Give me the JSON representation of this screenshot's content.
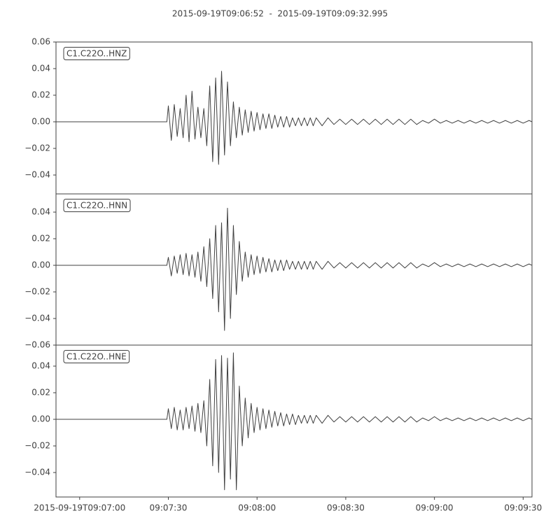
{
  "chart_data": [
    {
      "type": "line",
      "title": "2015-09-19T09:06:52  -  2015-09-19T09:09:32.995",
      "x": [
        412,
        449.5,
        450,
        451,
        452,
        453,
        454,
        455,
        456,
        457,
        458,
        459,
        460,
        461,
        462,
        463,
        464,
        465,
        466,
        467,
        468,
        469,
        470,
        471,
        472,
        473,
        474,
        475,
        476,
        477,
        478,
        479,
        480,
        481,
        482,
        483,
        484,
        485,
        486,
        487,
        488,
        489,
        490,
        491,
        492,
        493,
        494,
        495,
        496,
        497,
        498,
        499,
        500,
        502,
        504,
        506,
        508,
        510,
        512,
        514,
        516,
        518,
        520,
        522,
        524,
        526,
        528,
        530,
        532,
        534,
        536,
        538,
        540,
        542,
        544,
        546,
        548,
        550,
        552,
        554,
        556,
        558,
        560,
        562,
        564,
        566,
        568,
        570,
        572,
        573
      ],
      "series": [
        {
          "name": "C1.C22O..HNZ",
          "color": "#404040",
          "values": [
            0,
            0,
            0.012,
            -0.014,
            0.013,
            -0.011,
            0.01,
            -0.012,
            0.02,
            -0.015,
            0.023,
            -0.013,
            0.011,
            -0.012,
            0.01,
            -0.018,
            0.027,
            -0.03,
            0.033,
            -0.032,
            0.038,
            -0.025,
            0.03,
            -0.018,
            0.015,
            -0.012,
            0.011,
            -0.01,
            0.009,
            -0.008,
            0.008,
            -0.007,
            0.007,
            -0.006,
            0.006,
            -0.005,
            0.006,
            -0.005,
            0.005,
            -0.004,
            0.004,
            -0.004,
            0.004,
            -0.004,
            0.003,
            -0.003,
            0.003,
            -0.003,
            0.003,
            -0.003,
            0.003,
            -0.003,
            0.003,
            -0.003,
            0.003,
            -0.002,
            0.002,
            -0.002,
            0.002,
            -0.002,
            0.002,
            -0.002,
            0.002,
            -0.002,
            0.002,
            -0.002,
            0.002,
            -0.002,
            0.002,
            -0.002,
            0.001,
            -0.001,
            0.002,
            -0.001,
            0.001,
            -0.001,
            0.001,
            -0.001,
            0.001,
            -0.001,
            0.001,
            -0.001,
            0.001,
            -0.001,
            0.001,
            -0.001,
            0.001,
            -0.001,
            0.001,
            0
          ]
        }
      ],
      "xlim": [
        412,
        572.995
      ],
      "ylim": [
        -0.0542,
        0.06
      ],
      "yticks": [
        0.06,
        0.04,
        0.02,
        {
          "value": 0,
          "label": "0.00"
        },
        {
          "value": -0.02,
          "label": "−0.02"
        },
        {
          "value": -0.04,
          "label": "−0.04"
        }
      ]
    },
    {
      "type": "line",
      "x": [
        412,
        449.5,
        450,
        451,
        452,
        453,
        454,
        455,
        456,
        457,
        458,
        459,
        460,
        461,
        462,
        463,
        464,
        465,
        466,
        467,
        468,
        469,
        470,
        471,
        472,
        473,
        474,
        475,
        476,
        477,
        478,
        479,
        480,
        481,
        482,
        483,
        484,
        485,
        486,
        487,
        488,
        489,
        490,
        491,
        492,
        493,
        494,
        495,
        496,
        497,
        498,
        499,
        500,
        502,
        504,
        506,
        508,
        510,
        512,
        514,
        516,
        518,
        520,
        522,
        524,
        526,
        528,
        530,
        532,
        534,
        536,
        538,
        540,
        542,
        544,
        546,
        548,
        550,
        552,
        554,
        556,
        558,
        560,
        562,
        564,
        566,
        568,
        570,
        572,
        573
      ],
      "series": [
        {
          "name": "C1.C22O..HNN",
          "color": "#404040",
          "values": [
            0,
            0,
            0.006,
            -0.008,
            0.007,
            -0.006,
            0.008,
            -0.007,
            0.009,
            -0.008,
            0.008,
            -0.009,
            0.01,
            -0.012,
            0.014,
            -0.016,
            0.02,
            -0.025,
            0.03,
            -0.035,
            0.032,
            -0.049,
            0.043,
            -0.04,
            0.03,
            -0.022,
            0.018,
            -0.012,
            0.01,
            -0.009,
            0.008,
            -0.007,
            0.007,
            -0.006,
            0.006,
            -0.005,
            0.005,
            -0.005,
            0.004,
            -0.004,
            0.004,
            -0.004,
            0.004,
            -0.003,
            0.003,
            -0.003,
            0.003,
            -0.003,
            0.003,
            -0.003,
            0.003,
            -0.003,
            0.003,
            -0.003,
            0.003,
            -0.002,
            0.002,
            -0.002,
            0.002,
            -0.002,
            0.002,
            -0.002,
            0.002,
            -0.002,
            0.002,
            -0.002,
            0.002,
            -0.002,
            0.002,
            -0.002,
            0.001,
            -0.001,
            0.002,
            -0.001,
            0.001,
            -0.001,
            0.001,
            -0.001,
            0.001,
            -0.001,
            0.001,
            -0.001,
            0.001,
            -0.001,
            0.001,
            -0.001,
            0.001,
            -0.001,
            0.001,
            0
          ]
        }
      ],
      "xlim": [
        412,
        572.995
      ],
      "ylim": [
        -0.06,
        0.0537
      ],
      "yticks": [
        0.04,
        0.02,
        {
          "value": 0,
          "label": "0.00"
        },
        {
          "value": -0.02,
          "label": "−0.02"
        },
        {
          "value": -0.04,
          "label": "−0.04"
        },
        {
          "value": -0.06,
          "label": "−0.06"
        }
      ]
    },
    {
      "type": "line",
      "x": [
        412,
        449.5,
        450,
        451,
        452,
        453,
        454,
        455,
        456,
        457,
        458,
        459,
        460,
        461,
        462,
        463,
        464,
        465,
        466,
        467,
        468,
        469,
        470,
        471,
        472,
        473,
        474,
        475,
        476,
        477,
        478,
        479,
        480,
        481,
        482,
        483,
        484,
        485,
        486,
        487,
        488,
        489,
        490,
        491,
        492,
        493,
        494,
        495,
        496,
        497,
        498,
        499,
        500,
        502,
        504,
        506,
        508,
        510,
        512,
        514,
        516,
        518,
        520,
        522,
        524,
        526,
        528,
        530,
        532,
        534,
        536,
        538,
        540,
        542,
        544,
        546,
        548,
        550,
        552,
        554,
        556,
        558,
        560,
        562,
        564,
        566,
        568,
        570,
        572,
        573
      ],
      "series": [
        {
          "name": "C1.C22O..HNE",
          "color": "#404040",
          "values": [
            0,
            0,
            0.008,
            -0.007,
            0.009,
            -0.008,
            0.007,
            -0.008,
            0.009,
            -0.007,
            0.01,
            -0.009,
            0.012,
            -0.01,
            0.014,
            -0.02,
            0.03,
            -0.035,
            0.045,
            -0.04,
            0.048,
            -0.053,
            0.046,
            -0.045,
            0.05,
            -0.053,
            0.025,
            -0.02,
            0.016,
            -0.014,
            0.012,
            -0.01,
            0.009,
            -0.008,
            0.008,
            -0.007,
            0.007,
            -0.006,
            0.006,
            -0.005,
            0.005,
            -0.005,
            0.004,
            -0.004,
            0.004,
            -0.004,
            0.003,
            -0.003,
            0.003,
            -0.003,
            0.003,
            -0.003,
            0.003,
            -0.003,
            0.003,
            -0.002,
            0.002,
            -0.002,
            0.002,
            -0.002,
            0.002,
            -0.002,
            0.002,
            -0.002,
            0.002,
            -0.002,
            0.002,
            -0.002,
            0.002,
            -0.002,
            0.001,
            -0.001,
            0.002,
            -0.001,
            0.001,
            -0.001,
            0.001,
            -0.001,
            0.001,
            -0.001,
            0.001,
            -0.001,
            0.001,
            -0.001,
            0.001,
            -0.001,
            0.001,
            -0.001,
            0.001,
            0
          ]
        }
      ],
      "xlim": [
        412,
        572.995
      ],
      "ylim": [
        -0.0584,
        0.0558
      ],
      "yticks": [
        0.04,
        0.02,
        {
          "value": 0,
          "label": "0.00"
        },
        {
          "value": -0.02,
          "label": "−0.02"
        },
        {
          "value": -0.04,
          "label": "−0.04"
        }
      ],
      "xticks": [
        {
          "value": 420,
          "label": "2015-09-19T09:07:00"
        },
        {
          "value": 450,
          "label": "09:07:30"
        },
        {
          "value": 480,
          "label": "09:08:00"
        },
        {
          "value": 510,
          "label": "09:08:30"
        },
        {
          "value": 540,
          "label": "09:09:00"
        },
        {
          "value": 570,
          "label": "09:09:30"
        }
      ]
    }
  ]
}
